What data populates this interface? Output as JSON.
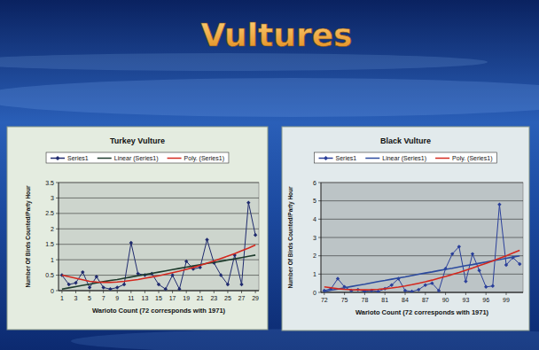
{
  "slide": {
    "title": "Vultures"
  },
  "chart_data": [
    {
      "type": "line",
      "title": "Turkey Vulture",
      "x_label": "Warioto Count (72 corresponds with 1971)",
      "y_label": "Number Of Birds Counted/Party Hour",
      "categories": [
        1,
        null,
        3,
        null,
        5,
        null,
        7,
        null,
        9,
        null,
        11,
        null,
        13,
        null,
        15,
        null,
        17,
        null,
        19,
        null,
        21,
        null,
        23,
        null,
        25,
        null,
        27,
        null,
        29
      ],
      "series": [
        {
          "name": "Series1",
          "color": "#1f2a6e",
          "marker": "diamond",
          "line_style": "solid",
          "values": [
            0.5,
            0.2,
            0.25,
            0.6,
            0.1,
            0.45,
            0.1,
            0.05,
            0.1,
            0.2,
            1.55,
            0.55,
            0.5,
            0.55,
            0.2,
            0.05,
            0.5,
            0.05,
            0.95,
            0.7,
            0.75,
            1.65,
            0.9,
            0.5,
            0.2,
            1.15,
            0.2,
            2.85,
            1.8
          ]
        },
        {
          "name": "Linear (Series1)",
          "color": "#1d3b2c",
          "marker": "none",
          "line_style": "solid",
          "values": [
            0.05,
            0.09,
            0.13,
            0.17,
            0.21,
            0.25,
            0.29,
            0.33,
            0.36,
            0.4,
            0.44,
            0.48,
            0.52,
            0.56,
            0.6,
            0.64,
            0.68,
            0.72,
            0.76,
            0.8,
            0.84,
            0.88,
            0.91,
            0.95,
            0.99,
            1.03,
            1.07,
            1.11,
            1.15
          ]
        },
        {
          "name": "Poly. (Series1)",
          "color": "#d4281e",
          "marker": "none",
          "line_style": "solid",
          "values": [
            0.5,
            0.45,
            0.4,
            0.35,
            0.3,
            0.28,
            0.27,
            0.27,
            0.28,
            0.3,
            0.33,
            0.36,
            0.4,
            0.44,
            0.48,
            0.53,
            0.58,
            0.63,
            0.69,
            0.75,
            0.82,
            0.89,
            0.96,
            1.04,
            1.12,
            1.2,
            1.29,
            1.38,
            1.48
          ]
        }
      ],
      "ylim": [
        0,
        3.5
      ],
      "yticks": [
        0,
        0.5,
        1,
        1.5,
        2,
        2.5,
        3,
        3.5
      ],
      "grid": true,
      "legend": "top"
    },
    {
      "type": "line",
      "title": "Black Vulture",
      "x_label": "Warioto Count (72 corresponds with 1971)",
      "y_label": "Number Of Birds Counted/Party Hour",
      "categories": [
        72,
        null,
        null,
        75,
        null,
        null,
        78,
        null,
        null,
        81,
        null,
        null,
        84,
        null,
        null,
        87,
        null,
        null,
        90,
        null,
        null,
        93,
        null,
        null,
        96,
        null,
        null,
        99,
        null,
        null
      ],
      "series": [
        {
          "name": "Series1",
          "color": "#2a3f9a",
          "marker": "diamond",
          "line_style": "solid",
          "values": [
            0.1,
            0.2,
            0.75,
            0.3,
            0.1,
            0.15,
            0.05,
            0.1,
            0.05,
            0.2,
            0.4,
            0.75,
            0.1,
            0.05,
            0.15,
            0.4,
            0.5,
            0.1,
            1.3,
            2.1,
            2.5,
            0.6,
            2.1,
            1.2,
            0.3,
            0.35,
            4.8,
            1.5,
            1.9,
            1.55
          ]
        },
        {
          "name": "Linear (Series1)",
          "color": "#2b4a9e",
          "marker": "none",
          "line_style": "solid",
          "values": [
            0.05,
            0.12,
            0.18,
            0.25,
            0.32,
            0.39,
            0.45,
            0.52,
            0.59,
            0.65,
            0.72,
            0.79,
            0.85,
            0.92,
            0.99,
            1.06,
            1.12,
            1.19,
            1.26,
            1.32,
            1.39,
            1.46,
            1.52,
            1.59,
            1.66,
            1.73,
            1.79,
            1.86,
            1.93,
            2.0
          ]
        },
        {
          "name": "Poly. (Series1)",
          "color": "#d4281e",
          "marker": "none",
          "line_style": "solid",
          "values": [
            0.3,
            0.25,
            0.2,
            0.17,
            0.15,
            0.14,
            0.14,
            0.15,
            0.17,
            0.2,
            0.24,
            0.29,
            0.35,
            0.42,
            0.5,
            0.58,
            0.67,
            0.77,
            0.87,
            0.98,
            1.09,
            1.21,
            1.33,
            1.46,
            1.59,
            1.72,
            1.86,
            2.0,
            2.15,
            2.3
          ]
        }
      ],
      "ylim": [
        0,
        6
      ],
      "yticks": [
        0,
        1,
        2,
        3,
        4,
        5,
        6
      ],
      "grid": true,
      "legend": "top"
    }
  ]
}
